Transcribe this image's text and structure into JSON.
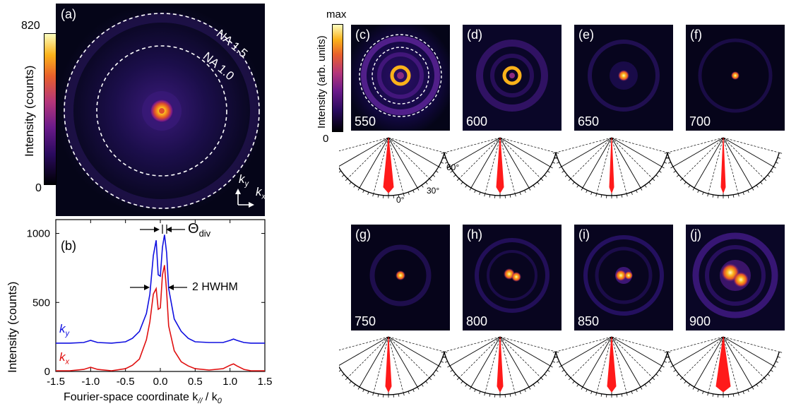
{
  "panel_a": {
    "label": "(a)",
    "colorbar_max": "820",
    "colorbar_min": "0",
    "colorbar_title": "Intensity (counts)",
    "na_outer": "NA 1.5",
    "na_inner": "NA 1.0",
    "axis_ky": "k",
    "axis_ky_sub": "y",
    "axis_kx": "k",
    "axis_kx_sub": "x"
  },
  "panel_b": {
    "label": "(b)",
    "theta_label": "Θ",
    "theta_sub": "div",
    "hwhm_label": "2 HWHM",
    "series_ky": "k",
    "series_ky_sub": "y",
    "series_kx": "k",
    "series_kx_sub": "x",
    "xlabel": "Fourier-space coordinate k",
    "xlabel_sub": "//",
    "xlabel_tail": " / k",
    "xlabel_tail_sub": "0",
    "ylabel": "Intensity (counts)"
  },
  "colorbar_c": {
    "max": "max",
    "min": "0",
    "title": "Intensity (arb. units)"
  },
  "tiles": [
    {
      "letter": "(c)",
      "wavelength": "550"
    },
    {
      "letter": "(d)",
      "wavelength": "600"
    },
    {
      "letter": "(e)",
      "wavelength": "650"
    },
    {
      "letter": "(f)",
      "wavelength": "700"
    },
    {
      "letter": "(g)",
      "wavelength": "750"
    },
    {
      "letter": "(h)",
      "wavelength": "800"
    },
    {
      "letter": "(i)",
      "wavelength": "850"
    },
    {
      "letter": "(j)",
      "wavelength": "900"
    }
  ],
  "polar_labels": {
    "deg60": "60°",
    "deg30": "30°",
    "deg0": "0°"
  },
  "colors": {
    "ky": "#1010e0",
    "kx": "#e01010",
    "lobe": "#ff1a1a"
  },
  "chart_data": {
    "type": "line",
    "xlabel": "Fourier-space coordinate k// / k0",
    "ylabel": "Intensity (counts)",
    "xlim": [
      -1.5,
      1.5
    ],
    "ylim": [
      0,
      1100
    ],
    "xticks": [
      -1.5,
      -1.0,
      -0.5,
      0.0,
      0.5,
      1.0,
      1.5
    ],
    "yticks": [
      0,
      500,
      1000
    ],
    "series": [
      {
        "name": "ky",
        "color": "#1010e0",
        "x": [
          -1.5,
          -1.3,
          -1.1,
          -1.0,
          -0.9,
          -0.7,
          -0.5,
          -0.4,
          -0.3,
          -0.2,
          -0.15,
          -0.1,
          -0.06,
          -0.03,
          0.0,
          0.03,
          0.06,
          0.09,
          0.12,
          0.2,
          0.3,
          0.4,
          0.5,
          0.7,
          0.9,
          1.0,
          1.05,
          1.1,
          1.2,
          1.3,
          1.5
        ],
        "y": [
          205,
          205,
          210,
          225,
          210,
          205,
          215,
          240,
          290,
          420,
          560,
          840,
          950,
          700,
          690,
          900,
          990,
          860,
          600,
          380,
          290,
          240,
          215,
          210,
          210,
          225,
          235,
          225,
          210,
          205,
          205
        ]
      },
      {
        "name": "kx",
        "color": "#e01010",
        "x": [
          -1.5,
          -1.3,
          -1.1,
          -1.0,
          -0.9,
          -0.7,
          -0.5,
          -0.4,
          -0.3,
          -0.2,
          -0.15,
          -0.1,
          -0.06,
          -0.03,
          0.0,
          0.03,
          0.06,
          0.09,
          0.12,
          0.2,
          0.3,
          0.4,
          0.5,
          0.7,
          0.9,
          1.0,
          1.05,
          1.1,
          1.2,
          1.3,
          1.5
        ],
        "y": [
          5,
          5,
          15,
          30,
          15,
          5,
          20,
          45,
          90,
          230,
          360,
          560,
          600,
          450,
          460,
          700,
          770,
          580,
          330,
          150,
          70,
          40,
          20,
          10,
          20,
          45,
          55,
          40,
          15,
          5,
          5
        ]
      }
    ]
  }
}
